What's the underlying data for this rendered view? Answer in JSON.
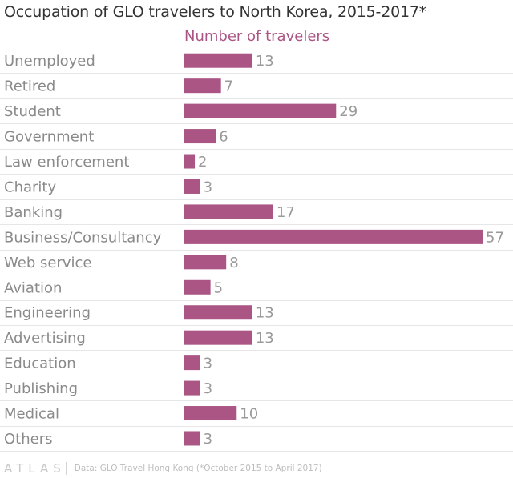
{
  "chart_data": {
    "type": "bar",
    "orientation": "horizontal",
    "title": "Occupation of GLO travelers to North Korea, 2015-2017*",
    "series_label": "Number of travelers",
    "categories": [
      "Unemployed",
      "Retired",
      "Student",
      "Government",
      "Law enforcement",
      "Charity",
      "Banking",
      "Business/Consultancy",
      "Web service",
      "Aviation",
      "Engineering",
      "Advertising",
      "Education",
      "Publishing",
      "Medical",
      "Others"
    ],
    "values": [
      13,
      7,
      29,
      6,
      2,
      3,
      17,
      57,
      8,
      5,
      13,
      13,
      3,
      3,
      10,
      3
    ],
    "xlim": [
      0,
      57
    ],
    "grid": true,
    "data_labels": true
  },
  "colors": {
    "bar": "#ab5585",
    "title": "#333333",
    "series_label": "#ab5585",
    "category_label": "#8a8a8a",
    "value_label": "#999999",
    "grid": "#e6e6e6",
    "axis": "#999999"
  },
  "footer": {
    "brand": "ATLAS",
    "source": "Data: GLO Travel Hong Kong (*October 2015 to April 2017)"
  }
}
